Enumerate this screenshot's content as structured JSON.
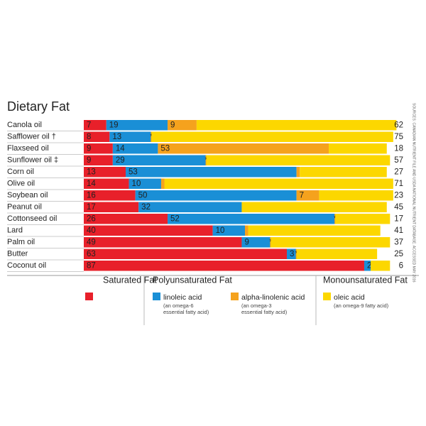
{
  "chart_data": {
    "type": "stacked-bar-horizontal",
    "title": "Dietary Fat",
    "categories": [
      "Canola oil",
      "Safflower oil †",
      "Flaxseed oil",
      "Sunflower oil ‡",
      "Corn oil",
      "Olive oil",
      "Soybean oil",
      "Peanut oil",
      "Cottonseed oil",
      "Lard",
      "Palm oil",
      "Butter",
      "Coconut oil"
    ],
    "xlim": [
      0,
      100
    ],
    "series": [
      {
        "name": "Saturated Fat",
        "color": "#e8202a",
        "values": [
          7,
          8,
          9,
          9,
          13,
          14,
          16,
          17,
          26,
          40,
          49,
          63,
          87
        ]
      },
      {
        "name": "linoleic acid",
        "note": [
          "(an omega-6",
          "essential fatty acid)"
        ],
        "color": "#1a8fd6",
        "values": [
          19,
          13,
          14,
          29,
          53,
          10,
          50,
          32,
          52,
          10,
          9,
          3,
          2
        ]
      },
      {
        "name": "alpha-linolenic acid",
        "note": [
          "(an omega-3",
          "essential fatty acid)"
        ],
        "color": "#f5a21d",
        "values": [
          9,
          null,
          53,
          null,
          1,
          1,
          7,
          null,
          null,
          1,
          null,
          null,
          null
        ],
        "value_labels": [
          null,
          "*",
          null,
          "*",
          null,
          null,
          null,
          null,
          "*",
          null,
          "*",
          "*",
          null
        ]
      },
      {
        "name": "oleic acid",
        "note": [
          "(an omega-9 fatty acid)"
        ],
        "color": "#fcd700",
        "values": [
          62,
          75,
          18,
          57,
          27,
          71,
          23,
          45,
          17,
          41,
          37,
          25,
          6
        ]
      }
    ],
    "legend_groups": [
      "Polyunsaturated Fat",
      "Monounsaturated Fat"
    ],
    "source": "SOURCES: CANADIAN NUTRIENT FILE AND USDA NATIONAL NUTRIENT DATABASE. ACCESSED MAY 2016"
  }
}
